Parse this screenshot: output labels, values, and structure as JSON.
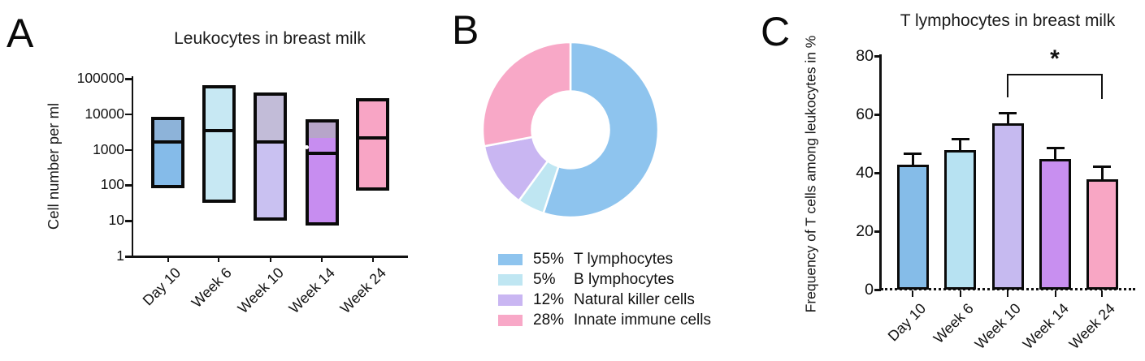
{
  "figure": {
    "panels": [
      {
        "letter": "A"
      },
      {
        "letter": "B"
      },
      {
        "letter": "C"
      }
    ]
  },
  "chart_data": [
    {
      "type": "box",
      "panel": "A",
      "title": "Leukocytes in breast milk",
      "ylabel": "Cell number per ml",
      "yscale": "log",
      "ylim": [
        1,
        100000
      ],
      "ytick_values": [
        1,
        10,
        100,
        1000,
        10000,
        100000
      ],
      "ytick_labels": [
        "1",
        "10",
        "100",
        "1000",
        "10000",
        "100000"
      ],
      "categories": [
        "Day 10",
        "Week 6",
        "Week 10",
        "Week 14",
        "Week 24"
      ],
      "boxes": [
        {
          "category": "Day 10",
          "min": 90,
          "median": 1700,
          "max": 7500,
          "fill": "#85bbe9",
          "fill_upper": "#8db3d9",
          "upper_tint_to": 1700
        },
        {
          "category": "Week 6",
          "min": 35,
          "median": 3500,
          "max": 58000,
          "fill": "#c7e8f3",
          "fill_upper": "#c7e8f3",
          "upper_tint_to": 3500
        },
        {
          "category": "Week 10",
          "min": 11,
          "median": 1650,
          "max": 36000,
          "fill": "#c9c1f1",
          "fill_upper": "#c2bcd8",
          "upper_tint_to": 1650
        },
        {
          "category": "Week 14",
          "min": 8,
          "median": 780,
          "max": 6500,
          "fill": "#c78df0",
          "fill_upper": "#b7a5c9",
          "upper_tint_to": 2150,
          "outlier": {
            "value": 1150,
            "color": "#ffffff"
          }
        },
        {
          "category": "Week 24",
          "min": 78,
          "median": 2100,
          "max": 25000,
          "fill": "#f8a5c5",
          "fill_upper": "#f8a5c5",
          "upper_tint_to": 2100
        }
      ],
      "border_color": "#0a0a0a",
      "grid": false
    },
    {
      "type": "pie",
      "panel": "B",
      "shape": "donut",
      "hole_ratio": 0.44,
      "start_angle_deg": 0,
      "direction": "clockwise",
      "slices": [
        {
          "pct": 55,
          "label": "T lymphocytes",
          "color": "#8ec4ee"
        },
        {
          "pct": 5,
          "label": "B lymphocytes",
          "color": "#bfe6f2"
        },
        {
          "pct": 12,
          "label": "Natural killer cells",
          "color": "#c9b6f2"
        },
        {
          "pct": 28,
          "label": "Innate immune cells",
          "color": "#f8a8c7"
        }
      ],
      "legend_position": "below"
    },
    {
      "type": "bar",
      "panel": "C",
      "title": "T lymphocytes in breast milk",
      "ylabel": "Frequency of T cells among leukocytes in %",
      "ylim": [
        0,
        80
      ],
      "ytick_values": [
        0,
        20,
        40,
        60,
        80
      ],
      "categories": [
        "Day 10",
        "Week 6",
        "Week 10",
        "Week 14",
        "Week 24"
      ],
      "values": [
        42,
        47,
        56,
        44,
        37
      ],
      "errors_up": [
        4.7,
        4.7,
        4.5,
        4.6,
        5.2
      ],
      "colors": [
        "#85bce8",
        "#b7e2f2",
        "#c6baf0",
        "#c88ff0",
        "#f8a6c4"
      ],
      "significance": {
        "from": "Week 10",
        "to": "Week 24",
        "label": "*"
      },
      "border_color": "#0a0a0a",
      "baseline_style": "dotted",
      "grid": false
    }
  ]
}
